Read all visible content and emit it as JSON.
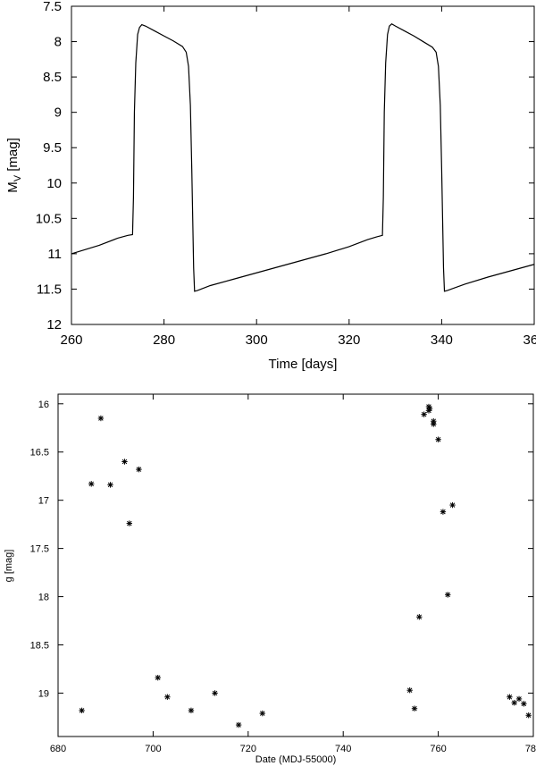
{
  "chart_data": [
    {
      "type": "line",
      "xlabel": "Time [days]",
      "ylabel_main": "M",
      "ylabel_sub": "V",
      "ylabel_rest": " [mag]",
      "xlim": [
        260,
        360
      ],
      "ylim": [
        7.5,
        12
      ],
      "y_inverted": true,
      "x_ticks": [
        260,
        280,
        300,
        320,
        340,
        360
      ],
      "y_ticks": [
        7.5,
        8,
        8.5,
        9,
        9.5,
        10,
        10.5,
        11,
        11.5,
        12
      ],
      "x_tick_labels": [
        "260",
        "280",
        "300",
        "320",
        "340",
        "360"
      ],
      "y_tick_labels": [
        "7.5",
        "8",
        "8.5",
        "9",
        "9.5",
        "10",
        "10.5",
        "11",
        "11.5",
        "12"
      ],
      "grid": false,
      "series": [
        {
          "x": [
            260,
            266,
            270,
            272.2,
            273.2,
            273.4,
            273.6,
            273.9,
            274.3,
            274.7,
            275.2,
            276,
            278,
            280,
            282,
            284,
            284.8,
            285.3,
            285.7,
            286,
            286.2,
            286.4,
            286.6,
            287.2,
            290,
            295,
            300,
            305,
            310,
            315,
            320,
            324,
            326,
            327.2,
            327.4,
            327.6,
            327.9,
            328.3,
            328.7,
            329.2,
            330,
            332,
            334,
            336,
            338,
            338.8,
            339.3,
            339.7,
            340,
            340.2,
            340.4,
            340.6,
            341.2,
            345,
            350,
            355,
            360
          ],
          "y": [
            11,
            10.88,
            10.78,
            10.74,
            10.73,
            10.2,
            9,
            8.3,
            7.9,
            7.8,
            7.76,
            7.78,
            7.85,
            7.92,
            7.99,
            8.07,
            8.15,
            8.35,
            8.9,
            9.8,
            10.5,
            11.2,
            11.53,
            11.52,
            11.45,
            11.36,
            11.27,
            11.18,
            11.09,
            11,
            10.9,
            10.8,
            10.76,
            10.74,
            10.2,
            9,
            8.3,
            7.9,
            7.78,
            7.75,
            7.78,
            7.85,
            7.92,
            8,
            8.08,
            8.15,
            8.35,
            8.9,
            9.8,
            10.5,
            11.2,
            11.53,
            11.52,
            11.43,
            11.33,
            11.24,
            11.15
          ]
        }
      ]
    },
    {
      "type": "scatter",
      "xlabel": "Date (MDJ-55000)",
      "ylabel": "g [mag]",
      "xlim": [
        680,
        780
      ],
      "ylim": [
        15.9,
        19.45
      ],
      "y_inverted": true,
      "x_ticks": [
        680,
        700,
        720,
        740,
        760,
        780
      ],
      "y_ticks": [
        16,
        16.5,
        17,
        17.5,
        18,
        18.5,
        19
      ],
      "x_tick_labels": [
        "680",
        "700",
        "720",
        "740",
        "760",
        "780"
      ],
      "y_tick_labels": [
        "16",
        "16.5",
        "17",
        "17.5",
        "18",
        "18.5",
        "19"
      ],
      "grid": false,
      "marker": "asterisk",
      "series": [
        {
          "x": [
            685,
            687,
            689,
            691,
            694,
            695,
            697,
            701,
            703,
            708,
            713,
            718,
            723,
            754,
            755,
            756,
            757,
            758,
            758,
            758.2,
            759,
            759,
            760,
            761,
            762,
            763,
            775,
            776,
            777,
            778,
            779
          ],
          "y": [
            19.18,
            16.83,
            16.15,
            16.84,
            16.6,
            17.24,
            16.68,
            18.84,
            19.04,
            19.18,
            19.0,
            19.33,
            19.21,
            18.97,
            19.16,
            18.21,
            16.11,
            16.03,
            16.07,
            16.05,
            16.18,
            16.21,
            16.37,
            17.12,
            17.98,
            17.05,
            19.04,
            19.1,
            19.06,
            19.11,
            19.23
          ]
        }
      ]
    }
  ]
}
